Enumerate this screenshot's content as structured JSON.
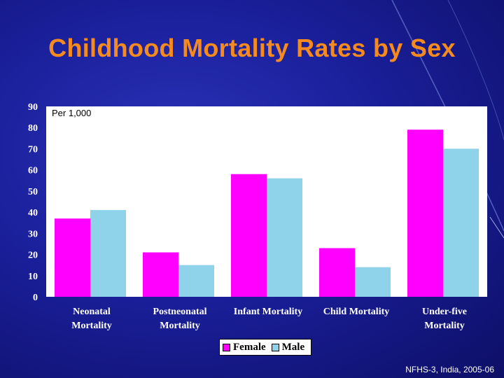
{
  "slide": {
    "title": "Childhood Mortality Rates by Sex",
    "source": "NFHS-3, India, 2005-06"
  },
  "colors": {
    "background": "#1a1f9a",
    "title": "#f58a1f",
    "female": "#ff00ff",
    "male": "#8fd3ea",
    "plot_bg": "#ffffff"
  },
  "chart_data": {
    "type": "bar",
    "title": "",
    "unit_label": "Per 1,000",
    "categories": [
      [
        "Neonatal",
        "Mortality"
      ],
      [
        "Postneonatal",
        "Mortality"
      ],
      [
        "Infant Mortality"
      ],
      [
        "Child Mortality"
      ],
      [
        "Under-five",
        "Mortality"
      ]
    ],
    "series": [
      {
        "name": "Female",
        "values": [
          37,
          21,
          58,
          23,
          79
        ]
      },
      {
        "name": "Male",
        "values": [
          41,
          15,
          56,
          14,
          70
        ]
      }
    ],
    "yticks": [
      "0",
      "10",
      "20",
      "30",
      "40",
      "50",
      "60",
      "70",
      "80",
      "90"
    ],
    "ylim": [
      0,
      90
    ],
    "legend_position": "bottom-center"
  }
}
